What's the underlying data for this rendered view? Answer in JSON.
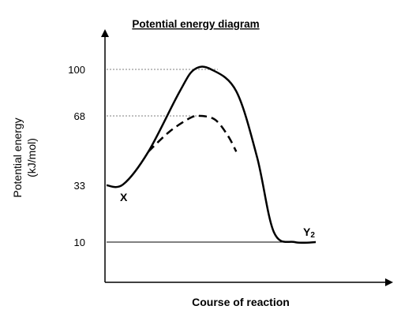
{
  "chart_data": {
    "type": "line",
    "title": "Potential energy diagram",
    "xlabel": "Course of reaction",
    "ylabel": "Potential energy",
    "ylabel_unit": "(kJ/mol)",
    "yticks": [
      "100",
      "68",
      "33",
      "10"
    ],
    "ylim": [
      0,
      115
    ],
    "grid": false,
    "reference_lines": [
      100,
      68,
      10
    ],
    "point_labels": {
      "reactant": "X",
      "product_base": "Y",
      "product_subscript": "2"
    },
    "series": [
      {
        "style": "solid",
        "x": [
          0,
          0.08,
          0.2,
          0.35,
          0.42,
          0.5,
          0.62,
          0.72,
          0.8,
          0.9,
          1.0
        ],
        "y": [
          33,
          33.5,
          50,
          85,
          100,
          100,
          85,
          47,
          14,
          10,
          10
        ]
      },
      {
        "style": "dashed",
        "x": [
          0.2,
          0.3,
          0.4,
          0.45,
          0.52,
          0.58,
          0.62
        ],
        "y": [
          50,
          60,
          67,
          68,
          66,
          58,
          50
        ]
      }
    ]
  }
}
